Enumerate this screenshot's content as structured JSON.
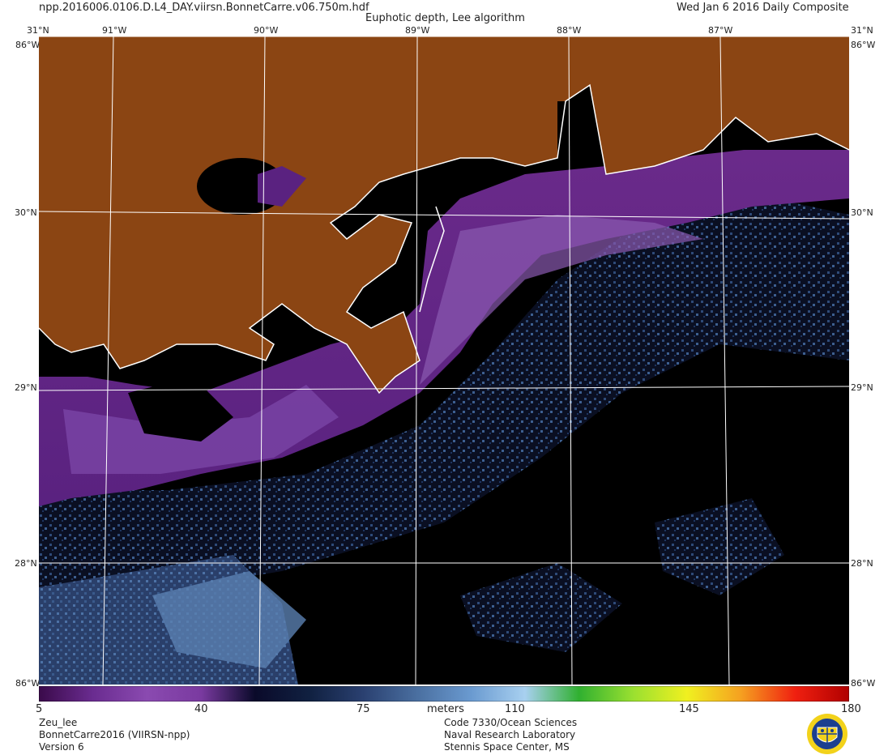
{
  "header": {
    "filename": "npp.2016006.0106.D.L4_DAY.viirsn.BonnetCarre.v06.750m.hdf",
    "product_title": "Euphotic depth, Lee algorithm",
    "date": "Wed Jan  6 2016 Daily Composite"
  },
  "map": {
    "longitude_labels": [
      "91°W",
      "90°W",
      "89°W",
      "88°W",
      "87°W"
    ],
    "latitude_labels": [
      "31°N",
      "30°N",
      "29°N",
      "28°N"
    ],
    "corner_labels": [
      "31°N",
      "31°N",
      "86°W",
      "86°W",
      "86°W",
      "86°W"
    ],
    "colors": {
      "land": "#8b4513",
      "nodata": "#000000",
      "coastline": "#ffffff",
      "gridline": "#ffffff"
    }
  },
  "colorbar": {
    "ticks": [
      "5",
      "40",
      "75",
      "110",
      "145",
      "180"
    ],
    "units": "meters",
    "min": 5,
    "max": 180,
    "palette": [
      "#3a0a4a",
      "#6a2c90",
      "#8a4ab0",
      "#7a3aa0",
      "#0a0a2a",
      "#102040",
      "#2a4070",
      "#4a6fa0",
      "#6a9ad0",
      "#a8d0f0",
      "#30b030",
      "#9ae030",
      "#f0f020",
      "#f5a020",
      "#f02010",
      "#b00000"
    ]
  },
  "footer": {
    "left": [
      "Zeu_lee",
      "BonnetCarre2016 (VIIRSN-npp)",
      "Version 6"
    ],
    "right": [
      "Code 7330/Ocean Sciences",
      "Naval Research Laboratory",
      "Stennis Space Center, MS"
    ]
  },
  "logo": {
    "name": "nrl-seal-icon"
  }
}
